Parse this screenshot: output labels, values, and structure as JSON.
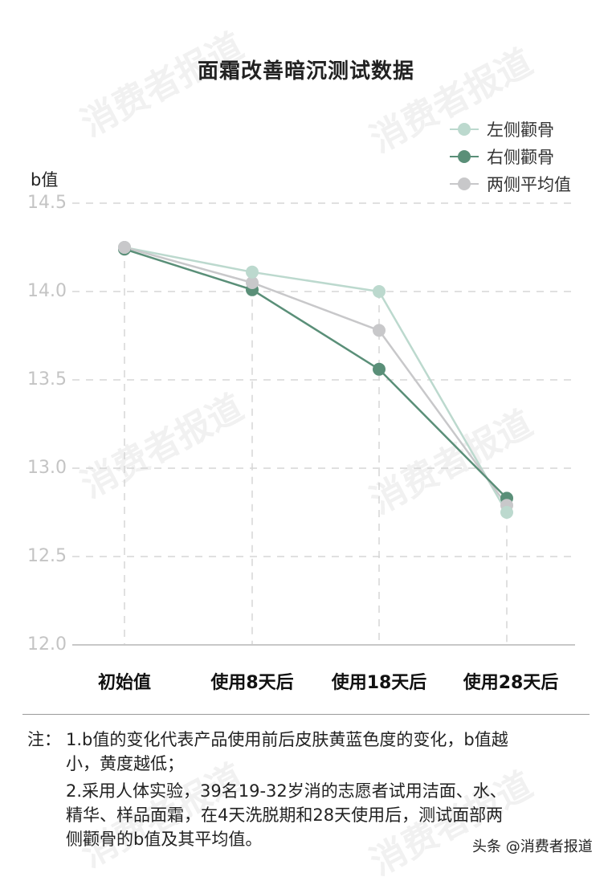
{
  "title": "面霜改善暗沉测试数据",
  "watermark": "消费者报道",
  "legend": [
    {
      "label": "左侧颧骨",
      "color": "#bcd9ce"
    },
    {
      "label": "右侧颧骨",
      "color": "#5a8f78"
    },
    {
      "label": "两侧平均值",
      "color": "#c8c8ca"
    }
  ],
  "y_axis": {
    "label": "b值",
    "ticks": [
      "14.5",
      "14.0",
      "13.5",
      "13.0",
      "12.5",
      "12.0"
    ]
  },
  "x_axis": {
    "ticks": [
      "初始值",
      "使用8天后",
      "使用18天后",
      "使用28天后"
    ]
  },
  "notes": {
    "prefix": "注：",
    "line1a": "1.b值的变化代表产品使用前后皮肤黄蓝色度的变化，b值越",
    "line1b": "小，黄度越低；",
    "line2a": "2.采用人体实验，39名19-32岁消的志愿者试用洁面、水、",
    "line2b": "精华、样品面霜，在4天洗脱期和28天使用后，测试面部两",
    "line2c": "侧颧骨的b值及其平均值。"
  },
  "credit": "头条 @消费者报道",
  "chart_data": {
    "type": "line",
    "title": "面霜改善暗沉测试数据",
    "xlabel": "",
    "ylabel": "b值",
    "categories": [
      "初始值",
      "使用8天后",
      "使用18天后",
      "使用28天后"
    ],
    "series": [
      {
        "name": "左侧颧骨",
        "color": "#bcd9ce",
        "values": [
          14.25,
          14.11,
          14.0,
          12.75
        ]
      },
      {
        "name": "右侧颧骨",
        "color": "#5a8f78",
        "values": [
          14.24,
          14.01,
          13.56,
          12.83
        ]
      },
      {
        "name": "两侧平均值",
        "color": "#c8c8ca",
        "values": [
          14.25,
          14.05,
          13.78,
          12.79
        ]
      }
    ],
    "ylim": [
      12.0,
      14.5
    ],
    "yticks": [
      12.0,
      12.5,
      13.0,
      13.5,
      14.0,
      14.5
    ],
    "grid": "dashed, horizontal and vertical",
    "legend_position": "top-right"
  }
}
